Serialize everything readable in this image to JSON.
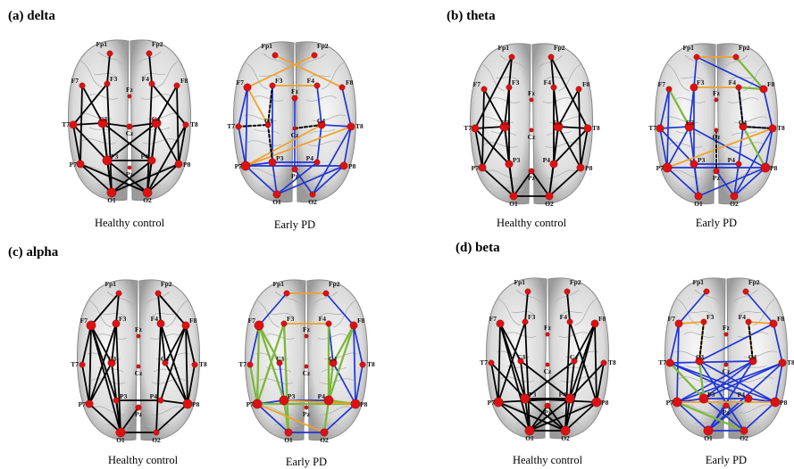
{
  "panels": [
    {
      "title": "(a) delta",
      "left_caption": "Healthy control",
      "right_caption": "Early PD"
    },
    {
      "title": "(b) theta",
      "left_caption": "Healthy control",
      "right_caption": "Early PD"
    },
    {
      "title": "(c) alpha",
      "left_caption": "Healthy control",
      "right_caption": "Early PD"
    },
    {
      "title": "(d) beta",
      "left_caption": "Healthy control",
      "right_caption": "Early PD"
    }
  ],
  "electrodes": [
    "Fp1",
    "Fp2",
    "F7",
    "F3",
    "Fz",
    "F4",
    "F8",
    "T7",
    "C3",
    "Cz",
    "C4",
    "T8",
    "P7",
    "P3",
    "Pz",
    "P4",
    "P8",
    "O1",
    "O2"
  ],
  "colors": {
    "healthy": "#000000",
    "blue": "#1f35d8",
    "orange": "#f0a12a",
    "green": "#7cb83a",
    "dashed": "#000000",
    "node": "#dd1111"
  },
  "networks": [
    {
      "healthy": [
        [
          "Fp1",
          "F3"
        ],
        [
          "Fp2",
          "F4"
        ],
        [
          "F7",
          "C3"
        ],
        [
          "F7",
          "P7"
        ],
        [
          "F3",
          "T7"
        ],
        [
          "F3",
          "O1"
        ],
        [
          "F8",
          "C4"
        ],
        [
          "F8",
          "P8"
        ],
        [
          "F4",
          "T8"
        ],
        [
          "F4",
          "O2"
        ],
        [
          "T7",
          "C3"
        ],
        [
          "T7",
          "P7"
        ],
        [
          "T7",
          "P3"
        ],
        [
          "C3",
          "P3"
        ],
        [
          "C3",
          "P4"
        ],
        [
          "C3",
          "O1"
        ],
        [
          "C4",
          "P4"
        ],
        [
          "C4",
          "P8"
        ],
        [
          "C4",
          "P3"
        ],
        [
          "C4",
          "O2"
        ],
        [
          "P7",
          "O1"
        ],
        [
          "P7",
          "O2"
        ],
        [
          "P3",
          "O1"
        ],
        [
          "P3",
          "O2"
        ],
        [
          "P4",
          "O1"
        ],
        [
          "P4",
          "O2"
        ],
        [
          "P8",
          "O1"
        ],
        [
          "P8",
          "O2"
        ],
        [
          "T8",
          "P8"
        ],
        [
          "T8",
          "O2"
        ],
        [
          "P3",
          "P4"
        ],
        [
          "Cz",
          "C4"
        ],
        [
          "C3",
          "Cz"
        ]
      ],
      "early_solid": [
        [
          "F7",
          "P7"
        ],
        [
          "F7",
          "T7"
        ],
        [
          "F3",
          "P3"
        ],
        [
          "T7",
          "P7"
        ],
        [
          "P7",
          "P3"
        ],
        [
          "P7",
          "P8"
        ],
        [
          "P7",
          "O1"
        ],
        [
          "P3",
          "O1"
        ],
        [
          "Pz",
          "O2"
        ],
        [
          "P4",
          "O1"
        ],
        [
          "P8",
          "O1"
        ],
        [
          "P8",
          "O2"
        ],
        [
          "T8",
          "P8"
        ],
        [
          "C4",
          "T8"
        ],
        [
          "F8",
          "T8"
        ],
        [
          "F4",
          "C4"
        ],
        [
          "Fz",
          "Pz"
        ],
        [
          "P3",
          "P4"
        ],
        [
          "C4",
          "P4"
        ],
        [
          "T8",
          "O2"
        ]
      ],
      "early_orange": [
        [
          "F7",
          "Fp2"
        ],
        [
          "Fp1",
          "F8"
        ],
        [
          "F3",
          "F4"
        ],
        [
          "P7",
          "T8"
        ],
        [
          "P7",
          "C4"
        ],
        [
          "F7",
          "C3"
        ]
      ],
      "early_green": [],
      "early_dashed": [
        [
          "T7",
          "C3"
        ],
        [
          "C3",
          "P3"
        ],
        [
          "Cz",
          "C4"
        ],
        [
          "F3",
          "C3"
        ]
      ]
    },
    {
      "healthy": [
        [
          "Fp1",
          "F3"
        ],
        [
          "Fp1",
          "T7"
        ],
        [
          "Fp2",
          "F4"
        ],
        [
          "Fp2",
          "T8"
        ],
        [
          "F7",
          "C3"
        ],
        [
          "F7",
          "P7"
        ],
        [
          "F3",
          "C3"
        ],
        [
          "F3",
          "P3"
        ],
        [
          "F4",
          "C4"
        ],
        [
          "F4",
          "P4"
        ],
        [
          "F8",
          "C4"
        ],
        [
          "F8",
          "P8"
        ],
        [
          "T7",
          "C3"
        ],
        [
          "T7",
          "P7"
        ],
        [
          "T7",
          "P3"
        ],
        [
          "C3",
          "P7"
        ],
        [
          "C3",
          "P3"
        ],
        [
          "C3",
          "O1"
        ],
        [
          "C4",
          "T8"
        ],
        [
          "C4",
          "P4"
        ],
        [
          "C4",
          "P8"
        ],
        [
          "C4",
          "O2"
        ],
        [
          "T8",
          "P8"
        ],
        [
          "T8",
          "P4"
        ],
        [
          "P7",
          "O1"
        ],
        [
          "P3",
          "O1"
        ],
        [
          "P4",
          "O2"
        ],
        [
          "P8",
          "O2"
        ],
        [
          "O1",
          "O2"
        ],
        [
          "Pz",
          "O1"
        ],
        [
          "Pz",
          "O2"
        ]
      ],
      "early_solid": [
        [
          "Fp1",
          "F3"
        ],
        [
          "Fp1",
          "F8"
        ],
        [
          "F7",
          "T7"
        ],
        [
          "F7",
          "P7"
        ],
        [
          "F3",
          "C3"
        ],
        [
          "F3",
          "P3"
        ],
        [
          "T7",
          "C3"
        ],
        [
          "T7",
          "P7"
        ],
        [
          "T7",
          "P3"
        ],
        [
          "C3",
          "P7"
        ],
        [
          "C3",
          "P8"
        ],
        [
          "C3",
          "O1"
        ],
        [
          "P7",
          "O1"
        ],
        [
          "P7",
          "P8"
        ],
        [
          "P3",
          "O1"
        ],
        [
          "P3",
          "P4"
        ],
        [
          "Pz",
          "O2"
        ],
        [
          "P4",
          "O2"
        ],
        [
          "P8",
          "O1"
        ],
        [
          "P8",
          "O2"
        ],
        [
          "T8",
          "P8"
        ],
        [
          "C4",
          "T8"
        ],
        [
          "F4",
          "C4"
        ],
        [
          "F8",
          "T8"
        ],
        [
          "C4",
          "P4"
        ],
        [
          "T8",
          "O2"
        ]
      ],
      "early_orange": [
        [
          "Fp1",
          "Fp2"
        ],
        [
          "P7",
          "T8"
        ],
        [
          "F3",
          "F4"
        ]
      ],
      "early_green": [
        [
          "F7",
          "C3"
        ],
        [
          "Fp2",
          "F8"
        ],
        [
          "C4",
          "P8"
        ],
        [
          "F4",
          "F8"
        ]
      ],
      "early_dashed": [
        [
          "Cz",
          "Pz"
        ],
        [
          "F4",
          "C4"
        ],
        [
          "C4",
          "T8"
        ]
      ]
    },
    {
      "healthy": [
        [
          "Fp1",
          "F7"
        ],
        [
          "Fp1",
          "F3"
        ],
        [
          "Fp2",
          "F4"
        ],
        [
          "Fp2",
          "F8"
        ],
        [
          "F7",
          "T7"
        ],
        [
          "F7",
          "C3"
        ],
        [
          "F7",
          "P7"
        ],
        [
          "F7",
          "P3"
        ],
        [
          "F7",
          "O1"
        ],
        [
          "F3",
          "P7"
        ],
        [
          "F3",
          "O1"
        ],
        [
          "F3",
          "C3"
        ],
        [
          "F4",
          "C4"
        ],
        [
          "F4",
          "P8"
        ],
        [
          "F4",
          "O2"
        ],
        [
          "F8",
          "C4"
        ],
        [
          "F8",
          "T8"
        ],
        [
          "F8",
          "P8"
        ],
        [
          "F8",
          "P4"
        ],
        [
          "T7",
          "P7"
        ],
        [
          "C3",
          "P7"
        ],
        [
          "C3",
          "O1"
        ],
        [
          "C4",
          "P8"
        ],
        [
          "T8",
          "P8"
        ],
        [
          "P7",
          "O1"
        ],
        [
          "P3",
          "O1"
        ],
        [
          "P4",
          "P8"
        ],
        [
          "P8",
          "O2"
        ],
        [
          "P3",
          "P4"
        ],
        [
          "O1",
          "O2"
        ],
        [
          "Pz",
          "O1"
        ]
      ],
      "early_solid": [
        [
          "Fp1",
          "F7"
        ],
        [
          "Fp2",
          "F8"
        ],
        [
          "F7",
          "P7"
        ],
        [
          "F7",
          "T7"
        ],
        [
          "F8",
          "T8"
        ],
        [
          "F8",
          "P8"
        ],
        [
          "T8",
          "P8"
        ],
        [
          "C4",
          "P8"
        ],
        [
          "P7",
          "O1"
        ],
        [
          "P7",
          "P3"
        ],
        [
          "P8",
          "O2"
        ],
        [
          "O1",
          "O2"
        ],
        [
          "P3",
          "P4"
        ],
        [
          "F4",
          "C4"
        ],
        [
          "C3",
          "P3"
        ]
      ],
      "early_orange": [
        [
          "Fp1",
          "Fp2"
        ],
        [
          "P7",
          "O2"
        ],
        [
          "P3",
          "P8"
        ],
        [
          "F3",
          "F4"
        ]
      ],
      "early_green": [
        [
          "F7",
          "C3"
        ],
        [
          "F7",
          "P3"
        ],
        [
          "F7",
          "P7"
        ],
        [
          "F3",
          "P7"
        ],
        [
          "F3",
          "O1"
        ],
        [
          "T7",
          "P7"
        ],
        [
          "P7",
          "P8"
        ],
        [
          "P3",
          "O1"
        ],
        [
          "F4",
          "P4"
        ],
        [
          "F8",
          "P4"
        ],
        [
          "C4",
          "P4"
        ],
        [
          "P4",
          "O2"
        ],
        [
          "P4",
          "P8"
        ],
        [
          "F8",
          "C4"
        ]
      ],
      "early_dashed": []
    },
    {
      "healthy": [
        [
          "Fp1",
          "F3"
        ],
        [
          "Fp2",
          "F4"
        ],
        [
          "F7",
          "C3"
        ],
        [
          "F7",
          "P7"
        ],
        [
          "F7",
          "P3"
        ],
        [
          "F7",
          "O1"
        ],
        [
          "F3",
          "O1"
        ],
        [
          "F3",
          "P7"
        ],
        [
          "F4",
          "O2"
        ],
        [
          "F4",
          "P8"
        ],
        [
          "F8",
          "C4"
        ],
        [
          "F8",
          "P8"
        ],
        [
          "F8",
          "P4"
        ],
        [
          "F8",
          "O2"
        ],
        [
          "T7",
          "P7"
        ],
        [
          "T7",
          "P3"
        ],
        [
          "C3",
          "P4"
        ],
        [
          "C3",
          "P3"
        ],
        [
          "C4",
          "P4"
        ],
        [
          "C4",
          "P3"
        ],
        [
          "T8",
          "P8"
        ],
        [
          "T8",
          "P4"
        ],
        [
          "P7",
          "O1"
        ],
        [
          "P7",
          "O2"
        ],
        [
          "P7",
          "P4"
        ],
        [
          "P3",
          "O1"
        ],
        [
          "P3",
          "O2"
        ],
        [
          "P3",
          "P8"
        ],
        [
          "P4",
          "O1"
        ],
        [
          "P4",
          "O2"
        ],
        [
          "P8",
          "O1"
        ],
        [
          "P8",
          "O2"
        ],
        [
          "O1",
          "O2"
        ],
        [
          "P3",
          "P4"
        ],
        [
          "Pz",
          "O1"
        ],
        [
          "Pz",
          "O2"
        ]
      ],
      "early_solid": [
        [
          "Fp1",
          "F7"
        ],
        [
          "F7",
          "T7"
        ],
        [
          "F7",
          "P7"
        ],
        [
          "Fp2",
          "F8"
        ],
        [
          "F8",
          "T8"
        ],
        [
          "F8",
          "C3"
        ],
        [
          "T7",
          "C4"
        ],
        [
          "T7",
          "P4"
        ],
        [
          "T7",
          "P8"
        ],
        [
          "C3",
          "P8"
        ],
        [
          "C3",
          "O2"
        ],
        [
          "C4",
          "P7"
        ],
        [
          "C4",
          "P3"
        ],
        [
          "C4",
          "O1"
        ],
        [
          "T8",
          "P7"
        ],
        [
          "T8",
          "P3"
        ],
        [
          "T8",
          "O1"
        ],
        [
          "T8",
          "P8"
        ],
        [
          "P7",
          "P3"
        ],
        [
          "P3",
          "P4"
        ],
        [
          "P4",
          "P8"
        ],
        [
          "P7",
          "O1"
        ],
        [
          "P8",
          "O2"
        ],
        [
          "O1",
          "O2"
        ],
        [
          "P3",
          "O2"
        ],
        [
          "P4",
          "O1"
        ],
        [
          "Pz",
          "O1"
        ]
      ],
      "early_orange": [
        [
          "F7",
          "F3"
        ],
        [
          "F3",
          "C3"
        ],
        [
          "F8",
          "F4"
        ],
        [
          "F4",
          "C4"
        ],
        [
          "P7",
          "P8"
        ]
      ],
      "early_green": [
        [
          "T7",
          "P3"
        ],
        [
          "P7",
          "O2"
        ],
        [
          "C3",
          "P3"
        ]
      ],
      "early_dashed": [
        [
          "F3",
          "C3"
        ],
        [
          "F4",
          "C4"
        ]
      ]
    }
  ]
}
